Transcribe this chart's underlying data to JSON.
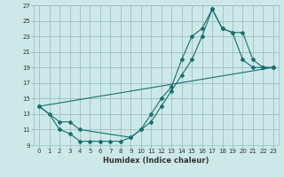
{
  "title": "",
  "xlabel": "Humidex (Indice chaleur)",
  "ylabel": "",
  "bg_color": "#cce8e8",
  "grid_color": "#9bbfbf",
  "line_color": "#1a6e6e",
  "xlim": [
    -0.5,
    23.5
  ],
  "ylim": [
    9,
    27
  ],
  "xticks": [
    0,
    1,
    2,
    3,
    4,
    5,
    6,
    7,
    8,
    9,
    10,
    11,
    12,
    13,
    14,
    15,
    16,
    17,
    18,
    19,
    20,
    21,
    22,
    23
  ],
  "yticks": [
    9,
    11,
    13,
    15,
    17,
    19,
    21,
    23,
    25,
    27
  ],
  "series": [
    {
      "x": [
        0,
        1,
        2,
        3,
        4,
        5,
        6,
        7,
        8,
        9,
        10,
        11,
        12,
        13,
        14,
        15,
        16,
        17,
        18,
        19,
        20,
        21,
        22,
        23
      ],
      "y": [
        14,
        13,
        11,
        10.5,
        9.5,
        9.5,
        9.5,
        9.5,
        9.5,
        10,
        11,
        13,
        15,
        16.5,
        20,
        23,
        24,
        26.5,
        24,
        23.5,
        20,
        19,
        19,
        19
      ]
    },
    {
      "x": [
        0,
        2,
        3,
        4,
        9,
        10,
        11,
        12,
        13,
        14,
        15,
        16,
        17,
        18,
        19,
        20,
        21,
        22,
        23
      ],
      "y": [
        14,
        12,
        12,
        11,
        10,
        11,
        12,
        14,
        16,
        18,
        20,
        23,
        26.5,
        24,
        23.5,
        23.5,
        20,
        19,
        19
      ]
    },
    {
      "x": [
        0,
        23
      ],
      "y": [
        14,
        19
      ]
    }
  ]
}
